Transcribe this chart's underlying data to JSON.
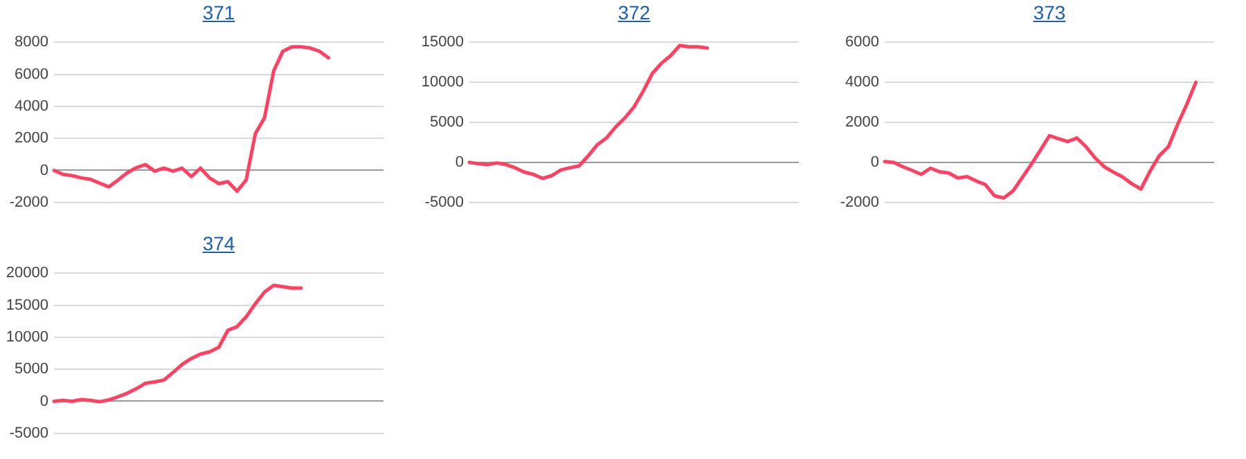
{
  "chart_data": [
    {
      "type": "line",
      "title": "371",
      "categories": [
        null,
        null,
        null,
        null,
        null,
        null,
        null,
        null,
        null,
        null,
        null,
        null,
        null,
        null,
        null,
        null,
        null,
        null,
        null,
        null,
        null,
        null,
        null,
        null,
        null,
        null,
        null,
        null,
        null,
        null,
        null,
        null,
        null,
        null,
        null,
        null,
        null
      ],
      "series": [
        {
          "color": "#ff4060",
          "values": [
            0,
            -250,
            -330,
            -470,
            -560,
            -800,
            -1030,
            -600,
            -150,
            170,
            360,
            -50,
            140,
            -50,
            140,
            -390,
            140,
            -470,
            -830,
            -700,
            -1300,
            -600,
            2300,
            3280,
            6200,
            7440,
            7720,
            7720,
            7640,
            7440,
            7030,
            null,
            null,
            null,
            null,
            null,
            null
          ]
        }
      ],
      "ylim": [
        -2000,
        8000
      ],
      "yticks": [
        -2000,
        0,
        2000,
        4000,
        6000,
        8000
      ],
      "grid": "y",
      "legend": false,
      "tick_labels": "y",
      "marker": "none",
      "line_style": "solid"
    },
    {
      "type": "line",
      "title": "372",
      "categories": [
        null,
        null,
        null,
        null,
        null,
        null,
        null,
        null,
        null,
        null,
        null,
        null,
        null,
        null,
        null,
        null,
        null,
        null,
        null,
        null,
        null,
        null,
        null,
        null,
        null,
        null,
        null,
        null,
        null,
        null,
        null,
        null,
        null,
        null,
        null,
        null,
        null
      ],
      "series": [
        {
          "color": "#ff4060",
          "values": [
            0,
            -170,
            -280,
            -60,
            -280,
            -670,
            -1220,
            -1500,
            -2000,
            -1670,
            -950,
            -670,
            -440,
            830,
            2220,
            3060,
            4440,
            5560,
            6940,
            8890,
            11110,
            12390,
            13330,
            14610,
            14440,
            14440,
            14280,
            null,
            null,
            null,
            null,
            null,
            null,
            null,
            null,
            null,
            null
          ]
        }
      ],
      "ylim": [
        -5000,
        15000
      ],
      "yticks": [
        -5000,
        0,
        5000,
        10000,
        15000
      ],
      "grid": "y",
      "legend": false,
      "tick_labels": "y",
      "marker": "none",
      "line_style": "solid"
    },
    {
      "type": "line",
      "title": "373",
      "categories": [
        null,
        null,
        null,
        null,
        null,
        null,
        null,
        null,
        null,
        null,
        null,
        null,
        null,
        null,
        null,
        null,
        null,
        null,
        null,
        null,
        null,
        null,
        null,
        null,
        null,
        null,
        null,
        null,
        null,
        null,
        null,
        null,
        null,
        null,
        null,
        null,
        null
      ],
      "series": [
        {
          "color": "#ff4060",
          "values": [
            40,
            0,
            -220,
            -400,
            -600,
            -290,
            -470,
            -530,
            -780,
            -710,
            -930,
            -1110,
            -1670,
            -1780,
            -1440,
            -780,
            -110,
            600,
            1330,
            1180,
            1040,
            1220,
            780,
            220,
            -220,
            -490,
            -730,
            -1070,
            -1330,
            -440,
            330,
            780,
            1890,
            2890,
            4000,
            null,
            null
          ]
        }
      ],
      "ylim": [
        -2000,
        6000
      ],
      "yticks": [
        -2000,
        0,
        2000,
        4000,
        6000
      ],
      "grid": "y",
      "legend": false,
      "tick_labels": "y",
      "marker": "none",
      "line_style": "solid"
    },
    {
      "type": "line",
      "title": "374",
      "categories": [
        null,
        null,
        null,
        null,
        null,
        null,
        null,
        null,
        null,
        null,
        null,
        null,
        null,
        null,
        null,
        null,
        null,
        null,
        null,
        null,
        null,
        null,
        null,
        null,
        null,
        null,
        null,
        null,
        null,
        null,
        null,
        null,
        null,
        null,
        null,
        null,
        null
      ],
      "series": [
        {
          "color": "#ff4060",
          "values": [
            0,
            140,
            0,
            280,
            140,
            -70,
            210,
            700,
            1260,
            1960,
            2810,
            3020,
            3300,
            4490,
            5750,
            6670,
            7370,
            7720,
            8420,
            11090,
            11650,
            13190,
            15230,
            17050,
            18110,
            17890,
            17680,
            17680,
            null,
            null,
            null,
            null,
            null,
            null,
            null,
            null,
            null
          ]
        }
      ],
      "ylim": [
        -5000,
        20000
      ],
      "yticks": [
        -5000,
        0,
        5000,
        10000,
        15000,
        20000
      ],
      "grid": "y",
      "legend": false,
      "tick_labels": "y",
      "marker": "none",
      "line_style": "solid"
    }
  ]
}
